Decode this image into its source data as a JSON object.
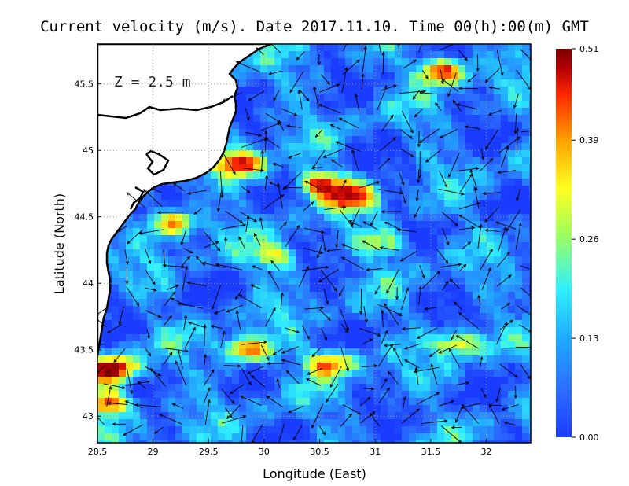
{
  "chart_data": {
    "type": "heatmap",
    "title": "Current velocity (m/s). Date 2017.11.10. Time 00(h):00(m) GMT",
    "xlabel": "Longitude (East)",
    "ylabel": "Latitude (North)",
    "depth_label": "Z = 2.5 m",
    "xlim": [
      28.5,
      32.4
    ],
    "ylim": [
      42.8,
      45.8
    ],
    "x_ticks": [
      "28.5",
      "29",
      "29.5",
      "30",
      "30.5",
      "31",
      "31.5",
      "32"
    ],
    "x_tick_values": [
      28.5,
      29,
      29.5,
      30,
      30.5,
      31,
      31.5,
      32
    ],
    "y_ticks": [
      "43",
      "43.5",
      "44",
      "44.5",
      "45",
      "45.5"
    ],
    "y_tick_values": [
      43,
      43.5,
      44,
      44.5,
      45,
      45.5
    ],
    "grid": true,
    "grid_style": "dotted",
    "colorbar": {
      "min": 0.0,
      "max": 0.51,
      "tick_labels": [
        "0.51",
        "0.39",
        "0.26",
        "0.13",
        "0.00"
      ],
      "tick_values": [
        0.51,
        0.39,
        0.26,
        0.13,
        0.0
      ],
      "colormap": [
        "#1a3cff",
        "#2b6cff",
        "#21a9ff",
        "#2ff0ff",
        "#9cff5e",
        "#ffff22",
        "#ffa500",
        "#ff2a00",
        "#b30000",
        "#7a0000"
      ]
    },
    "land_color": "#ffffff",
    "coast_color": "#000000",
    "arrow_color": "#000000",
    "hotspots": [
      {
        "lon": 28.65,
        "lat": 43.35,
        "speed": 0.49
      },
      {
        "lon": 28.6,
        "lat": 43.1,
        "speed": 0.44
      },
      {
        "lon": 29.8,
        "lat": 44.9,
        "speed": 0.45
      },
      {
        "lon": 30.5,
        "lat": 44.75,
        "speed": 0.42
      },
      {
        "lon": 30.8,
        "lat": 44.65,
        "speed": 0.4
      },
      {
        "lon": 29.2,
        "lat": 44.45,
        "speed": 0.4
      },
      {
        "lon": 29.85,
        "lat": 43.5,
        "speed": 0.42
      },
      {
        "lon": 30.6,
        "lat": 43.4,
        "speed": 0.4
      },
      {
        "lon": 31.6,
        "lat": 45.6,
        "speed": 0.45
      },
      {
        "lon": 31.75,
        "lat": 43.55,
        "speed": 0.33
      },
      {
        "lon": 30.1,
        "lat": 44.2,
        "speed": 0.3
      },
      {
        "lon": 31.1,
        "lat": 44.3,
        "speed": 0.28
      }
    ]
  }
}
